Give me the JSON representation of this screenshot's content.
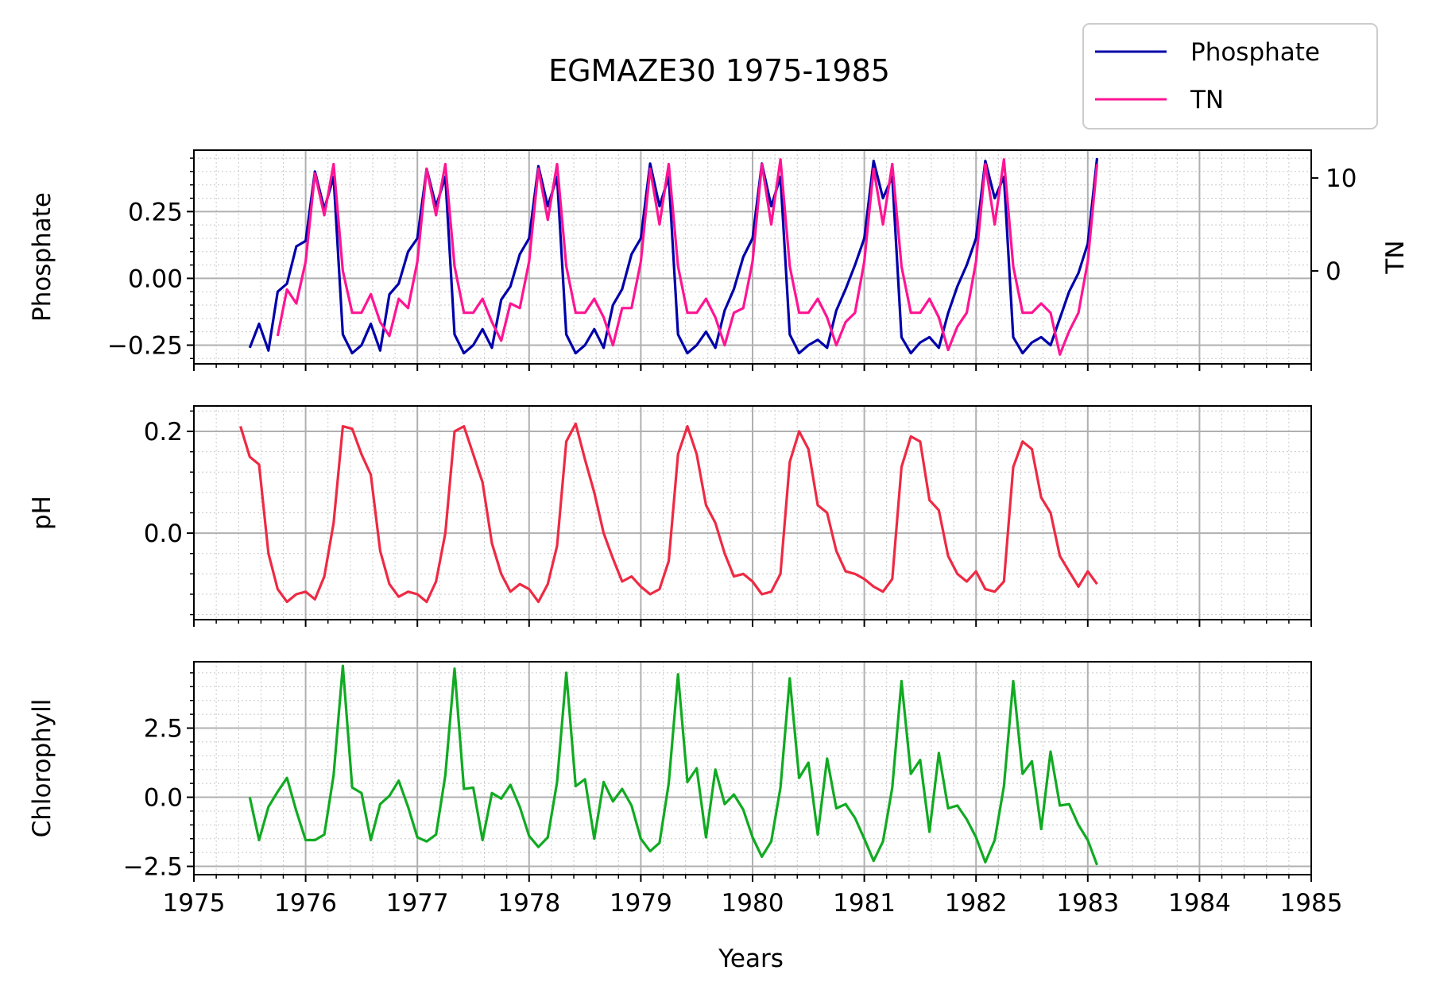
{
  "chart_data": {
    "type": "line",
    "title": "EGMAZE30 1975-1985",
    "xlabel": "Years",
    "xlim": [
      1975,
      1985
    ],
    "x_ticks": [
      "1975",
      "1976",
      "1977",
      "1978",
      "1979",
      "1980",
      "1981",
      "1982",
      "1983",
      "1984",
      "1985"
    ],
    "grid": true,
    "legend": {
      "placement": "top-right",
      "entries": [
        {
          "name": "Phosphate",
          "color": "#0000aa"
        },
        {
          "name": "TN",
          "color": "#ff1493"
        }
      ]
    },
    "panels": [
      {
        "ylabel": "Phosphate",
        "ylim": [
          -0.32,
          0.48
        ],
        "y_ticks": [
          "0.25",
          "0.00",
          "−0.25"
        ],
        "y_tick_values": [
          0.25,
          0.0,
          -0.25
        ],
        "right_axis": {
          "ylabel": "TN",
          "ylim": [
            -10,
            13
          ],
          "y_ticks": [
            "10",
            "0"
          ],
          "y_tick_values": [
            10,
            0
          ]
        },
        "series": [
          {
            "name": "Phosphate",
            "axis": "left",
            "color": "#0000aa",
            "x": [
              1975.5,
              1975.583,
              1975.667,
              1975.75,
              1975.833,
              1975.917,
              1976.0,
              1976.083,
              1976.167,
              1976.25,
              1976.333,
              1976.417,
              1976.5,
              1976.583,
              1976.667,
              1976.75,
              1976.833,
              1976.917,
              1977.0,
              1977.083,
              1977.167,
              1977.25,
              1977.333,
              1977.417,
              1977.5,
              1977.583,
              1977.667,
              1977.75,
              1977.833,
              1977.917,
              1978.0,
              1978.083,
              1978.167,
              1978.25,
              1978.333,
              1978.417,
              1978.5,
              1978.583,
              1978.667,
              1978.75,
              1978.833,
              1978.917,
              1979.0,
              1979.083,
              1979.167,
              1979.25,
              1979.333,
              1979.417,
              1979.5,
              1979.583,
              1979.667,
              1979.75,
              1979.833,
              1979.917,
              1980.0,
              1980.083,
              1980.167,
              1980.25,
              1980.333,
              1980.417,
              1980.5,
              1980.583,
              1980.667,
              1980.75,
              1980.833,
              1980.917,
              1981.0,
              1981.083,
              1981.167,
              1981.25,
              1981.333,
              1981.417,
              1981.5,
              1981.583,
              1981.667,
              1981.75,
              1981.833,
              1981.917,
              1982.0,
              1982.083,
              1982.167,
              1982.25,
              1982.333,
              1982.417,
              1982.5,
              1982.583,
              1982.667,
              1982.75,
              1982.833,
              1982.917,
              1983.0,
              1983.083
            ],
            "y": [
              -0.26,
              -0.17,
              -0.27,
              -0.05,
              -0.02,
              0.12,
              0.14,
              0.4,
              0.26,
              0.38,
              -0.21,
              -0.28,
              -0.25,
              -0.17,
              -0.27,
              -0.06,
              -0.02,
              0.1,
              0.15,
              0.41,
              0.27,
              0.38,
              -0.21,
              -0.28,
              -0.25,
              -0.19,
              -0.26,
              -0.08,
              -0.03,
              0.09,
              0.15,
              0.42,
              0.27,
              0.38,
              -0.21,
              -0.28,
              -0.25,
              -0.19,
              -0.26,
              -0.1,
              -0.04,
              0.09,
              0.15,
              0.43,
              0.27,
              0.38,
              -0.21,
              -0.28,
              -0.25,
              -0.2,
              -0.26,
              -0.12,
              -0.04,
              0.08,
              0.15,
              0.43,
              0.27,
              0.38,
              -0.21,
              -0.28,
              -0.25,
              -0.23,
              -0.26,
              -0.12,
              -0.04,
              0.05,
              0.15,
              0.44,
              0.3,
              0.38,
              -0.22,
              -0.28,
              -0.24,
              -0.22,
              -0.26,
              -0.13,
              -0.03,
              0.05,
              0.15,
              0.44,
              0.3,
              0.38,
              -0.22,
              -0.28,
              -0.24,
              -0.22,
              -0.25,
              -0.15,
              -0.05,
              0.02,
              0.13,
              0.45
            ]
          },
          {
            "name": "TN",
            "axis": "right",
            "color": "#ff1493",
            "x": [
              1975.75,
              1975.833,
              1975.917,
              1976.0,
              1976.083,
              1976.167,
              1976.25,
              1976.333,
              1976.417,
              1976.5,
              1976.583,
              1976.667,
              1976.75,
              1976.833,
              1976.917,
              1977.0,
              1977.083,
              1977.167,
              1977.25,
              1977.333,
              1977.417,
              1977.5,
              1977.583,
              1977.667,
              1977.75,
              1977.833,
              1977.917,
              1978.0,
              1978.083,
              1978.167,
              1978.25,
              1978.333,
              1978.417,
              1978.5,
              1978.583,
              1978.667,
              1978.75,
              1978.833,
              1978.917,
              1979.0,
              1979.083,
              1979.167,
              1979.25,
              1979.333,
              1979.417,
              1979.5,
              1979.583,
              1979.667,
              1979.75,
              1979.833,
              1979.917,
              1980.0,
              1980.083,
              1980.167,
              1980.25,
              1980.333,
              1980.417,
              1980.5,
              1980.583,
              1980.667,
              1980.75,
              1980.833,
              1980.917,
              1981.0,
              1981.083,
              1981.167,
              1981.25,
              1981.333,
              1981.417,
              1981.5,
              1981.583,
              1981.667,
              1981.75,
              1981.833,
              1981.917,
              1982.0,
              1982.083,
              1982.167,
              1982.25,
              1982.333,
              1982.417,
              1982.5,
              1982.583,
              1982.667,
              1982.75,
              1982.833,
              1982.917,
              1983.0,
              1983.083
            ],
            "y": [
              -7.0,
              -2.0,
              -3.5,
              1.0,
              10.5,
              6.0,
              11.5,
              0.0,
              -4.5,
              -4.5,
              -2.5,
              -5.5,
              -7.0,
              -3.0,
              -4.0,
              1.0,
              11.0,
              6.0,
              11.5,
              0.5,
              -4.5,
              -4.5,
              -3.0,
              -5.5,
              -7.5,
              -3.5,
              -4.0,
              1.0,
              11.0,
              5.5,
              11.5,
              0.5,
              -4.5,
              -4.5,
              -3.0,
              -5.0,
              -8.0,
              -4.0,
              -4.0,
              1.0,
              11.0,
              5.0,
              11.5,
              0.5,
              -4.5,
              -4.5,
              -3.0,
              -5.0,
              -8.0,
              -4.5,
              -4.0,
              1.0,
              11.5,
              5.0,
              12.0,
              0.5,
              -4.5,
              -4.5,
              -3.0,
              -5.0,
              -8.0,
              -5.5,
              -4.5,
              1.0,
              11.0,
              5.0,
              11.5,
              0.5,
              -4.5,
              -4.5,
              -3.0,
              -5.0,
              -8.5,
              -6.0,
              -4.5,
              1.0,
              11.5,
              5.0,
              12.0,
              0.5,
              -4.5,
              -4.5,
              -3.5,
              -4.5,
              -9.0,
              -6.5,
              -4.5,
              1.0,
              11.5
            ]
          }
        ]
      },
      {
        "ylabel": "pH",
        "ylim": [
          -0.17,
          0.25
        ],
        "y_ticks": [
          "0.2",
          "0.0"
        ],
        "y_tick_values": [
          0.2,
          0.0
        ],
        "series": [
          {
            "name": "pH",
            "axis": "left",
            "color": "#ee2a44",
            "x": [
              1975.417,
              1975.5,
              1975.583,
              1975.667,
              1975.75,
              1975.833,
              1975.917,
              1976.0,
              1976.083,
              1976.167,
              1976.25,
              1976.333,
              1976.417,
              1976.5,
              1976.583,
              1976.667,
              1976.75,
              1976.833,
              1976.917,
              1977.0,
              1977.083,
              1977.167,
              1977.25,
              1977.333,
              1977.417,
              1977.5,
              1977.583,
              1977.667,
              1977.75,
              1977.833,
              1977.917,
              1978.0,
              1978.083,
              1978.167,
              1978.25,
              1978.333,
              1978.417,
              1978.5,
              1978.583,
              1978.667,
              1978.75,
              1978.833,
              1978.917,
              1979.0,
              1979.083,
              1979.167,
              1979.25,
              1979.333,
              1979.417,
              1979.5,
              1979.583,
              1979.667,
              1979.75,
              1979.833,
              1979.917,
              1980.0,
              1980.083,
              1980.167,
              1980.25,
              1980.333,
              1980.417,
              1980.5,
              1980.583,
              1980.667,
              1980.75,
              1980.833,
              1980.917,
              1981.0,
              1981.083,
              1981.167,
              1981.25,
              1981.333,
              1981.417,
              1981.5,
              1981.583,
              1981.667,
              1981.75,
              1981.833,
              1981.917,
              1982.0,
              1982.083,
              1982.167,
              1982.25,
              1982.333,
              1982.417,
              1982.5,
              1982.583,
              1982.667,
              1982.75,
              1982.833,
              1982.917,
              1983.0,
              1983.083
            ],
            "y": [
              0.21,
              0.15,
              0.135,
              -0.04,
              -0.11,
              -0.135,
              -0.12,
              -0.115,
              -0.13,
              -0.085,
              0.02,
              0.21,
              0.205,
              0.155,
              0.115,
              -0.035,
              -0.1,
              -0.125,
              -0.115,
              -0.12,
              -0.135,
              -0.095,
              0.0,
              0.2,
              0.21,
              0.155,
              0.1,
              -0.02,
              -0.08,
              -0.115,
              -0.1,
              -0.11,
              -0.135,
              -0.1,
              -0.025,
              0.18,
              0.215,
              0.145,
              0.08,
              0.0,
              -0.05,
              -0.095,
              -0.085,
              -0.105,
              -0.12,
              -0.11,
              -0.055,
              0.155,
              0.21,
              0.155,
              0.055,
              0.02,
              -0.04,
              -0.085,
              -0.08,
              -0.095,
              -0.12,
              -0.115,
              -0.08,
              0.14,
              0.2,
              0.165,
              0.055,
              0.04,
              -0.035,
              -0.075,
              -0.08,
              -0.09,
              -0.105,
              -0.115,
              -0.09,
              0.13,
              0.19,
              0.18,
              0.065,
              0.045,
              -0.045,
              -0.08,
              -0.095,
              -0.075,
              -0.11,
              -0.115,
              -0.095,
              0.13,
              0.18,
              0.165,
              0.07,
              0.04,
              -0.045,
              -0.075,
              -0.105,
              -0.075,
              -0.1
            ]
          }
        ]
      },
      {
        "ylabel": "Chlorophyll",
        "ylim": [
          -2.8,
          4.9
        ],
        "y_ticks": [
          "2.5",
          "0.0",
          "−2.5"
        ],
        "y_tick_values": [
          2.5,
          0.0,
          -2.5
        ],
        "series": [
          {
            "name": "Chlorophyll",
            "axis": "left",
            "color": "#11aa22",
            "x": [
              1975.5,
              1975.583,
              1975.667,
              1975.75,
              1975.833,
              1975.917,
              1976.0,
              1976.083,
              1976.167,
              1976.25,
              1976.333,
              1976.417,
              1976.5,
              1976.583,
              1976.667,
              1976.75,
              1976.833,
              1976.917,
              1977.0,
              1977.083,
              1977.167,
              1977.25,
              1977.333,
              1977.417,
              1977.5,
              1977.583,
              1977.667,
              1977.75,
              1977.833,
              1977.917,
              1978.0,
              1978.083,
              1978.167,
              1978.25,
              1978.333,
              1978.417,
              1978.5,
              1978.583,
              1978.667,
              1978.75,
              1978.833,
              1978.917,
              1979.0,
              1979.083,
              1979.167,
              1979.25,
              1979.333,
              1979.417,
              1979.5,
              1979.583,
              1979.667,
              1979.75,
              1979.833,
              1979.917,
              1980.0,
              1980.083,
              1980.167,
              1980.25,
              1980.333,
              1980.417,
              1980.5,
              1980.583,
              1980.667,
              1980.75,
              1980.833,
              1980.917,
              1981.0,
              1981.083,
              1981.167,
              1981.25,
              1981.333,
              1981.417,
              1981.5,
              1981.583,
              1981.667,
              1981.75,
              1981.833,
              1981.917,
              1982.0,
              1982.083,
              1982.167,
              1982.25,
              1982.333,
              1982.417,
              1982.5,
              1982.583,
              1982.667,
              1982.75,
              1982.833,
              1982.917,
              1983.0,
              1983.083
            ],
            "y": [
              0.0,
              -1.55,
              -0.35,
              0.2,
              0.7,
              -0.5,
              -1.55,
              -1.55,
              -1.35,
              0.8,
              4.75,
              0.35,
              0.15,
              -1.55,
              -0.25,
              0.05,
              0.6,
              -0.35,
              -1.45,
              -1.6,
              -1.35,
              0.8,
              4.65,
              0.3,
              0.35,
              -1.55,
              0.15,
              -0.05,
              0.45,
              -0.35,
              -1.4,
              -1.8,
              -1.45,
              0.55,
              4.5,
              0.4,
              0.65,
              -1.5,
              0.55,
              -0.15,
              0.3,
              -0.3,
              -1.5,
              -1.95,
              -1.65,
              0.5,
              4.45,
              0.55,
              1.05,
              -1.45,
              1.0,
              -0.25,
              0.1,
              -0.45,
              -1.45,
              -2.15,
              -1.6,
              0.35,
              4.3,
              0.7,
              1.25,
              -1.35,
              1.4,
              -0.4,
              -0.25,
              -0.75,
              -1.5,
              -2.3,
              -1.6,
              0.35,
              4.2,
              0.85,
              1.35,
              -1.25,
              1.6,
              -0.4,
              -0.3,
              -0.8,
              -1.45,
              -2.35,
              -1.55,
              0.4,
              4.2,
              0.85,
              1.3,
              -1.15,
              1.65,
              -0.3,
              -0.25,
              -1.0,
              -1.55,
              -2.45
            ]
          }
        ]
      }
    ]
  }
}
